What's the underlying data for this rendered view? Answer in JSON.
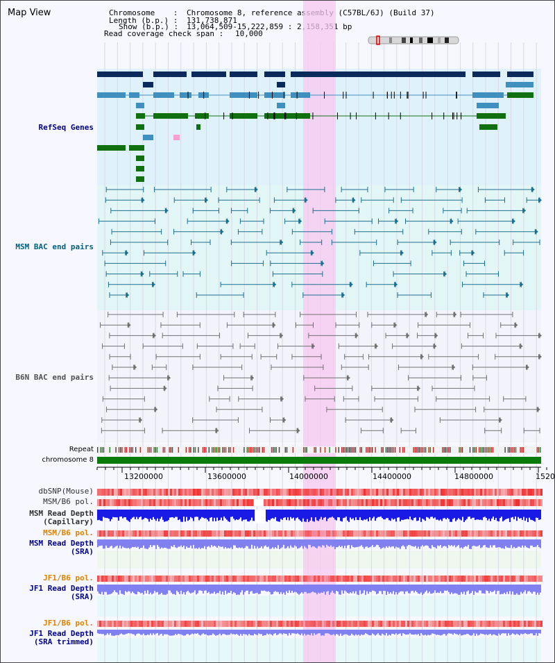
{
  "title": "Map View",
  "header": {
    "chromosome_label": "Chromosome    :",
    "chromosome_value": "Chromosome 8, reference assembly (C57BL/6J) (Build 37)",
    "length_label": "Length (b.p.) :",
    "length_value": "131,738,871",
    "show_label": "Show (b.p.) :",
    "show_value": "13,064,509-15,222,859 : 2,158,351 bp",
    "coverage_label": "Read coverage check span :",
    "coverage_value": "10,000"
  },
  "tracks": {
    "refseq": "RefSeq Genes",
    "msm_bac": "MSM BAC end pairs",
    "b6n_bac": "B6N BAC end pairs",
    "repeat": "Repeat",
    "chromosome": "chromosome 8",
    "dbsnp": "dbSNP(Mouse)",
    "msm_b6_pol_1": "MSM/B6 pol.",
    "msm_read_depth_cap_1": "MSM Read Depth",
    "msm_read_depth_cap_2": "(Capillary)",
    "msm_b6_pol_2": "MSM/B6 pol.",
    "msm_read_depth_sra_1": "MSM Read Depth",
    "msm_read_depth_sra_2": "(SRA)",
    "jf1_b6_pol_1": "JF1/B6 pol.",
    "jf1_read_depth_sra_1": "JF1 Read Depth",
    "jf1_read_depth_sra_2": "(SRA)",
    "jf1_b6_pol_2": "JF1/B6 pol.",
    "jf1_read_depth_trim_1": "JF1 Read Depth",
    "jf1_read_depth_trim_2": "(SRA trimmed)"
  },
  "axis": {
    "ticks": [
      "13200000",
      "13600000",
      "14000000",
      "14400000",
      "14800000",
      "1520"
    ]
  },
  "colors": {
    "refseq_bg": "#dff2fb",
    "msm_bg": "#e3f6f6",
    "b6n_bg": "#f3f3fb",
    "highlight": "#f8c8f0",
    "navy": "#0a2a5c",
    "steel": "#3f8fbf",
    "green": "#107010",
    "teal_line": "#1a6e8e",
    "gray_line": "#707070",
    "depth_blue": "#1a1ae6",
    "depth_violet": "#8080f0",
    "label_blue": "#00008b",
    "label_teal": "#006080",
    "label_orange": "#e08000"
  }
}
